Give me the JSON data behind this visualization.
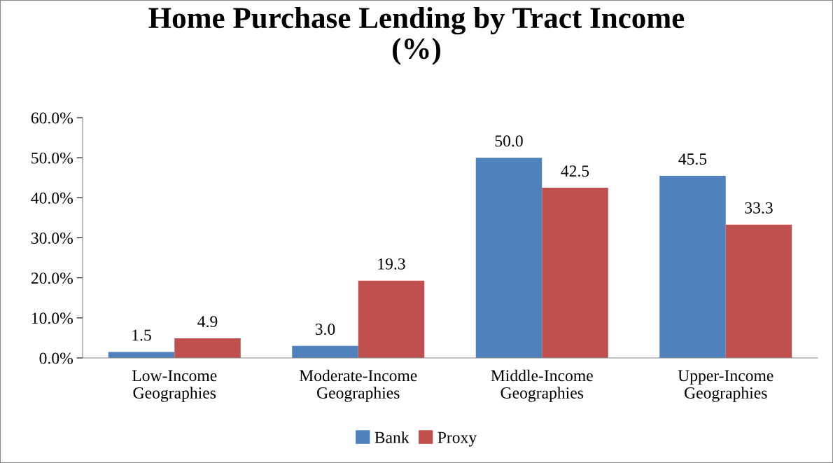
{
  "chart_data": {
    "type": "bar",
    "title": "Home Purchase Lending by Tract Income\n(%)",
    "categories": [
      "Low-Income\nGeographies",
      "Moderate-Income\nGeographies",
      "Middle-Income\nGeographies",
      "Upper-Income\nGeographies"
    ],
    "series": [
      {
        "name": "Bank",
        "color": "#4f81bd",
        "values": [
          1.5,
          3.0,
          50.0,
          45.5
        ],
        "value_labels": [
          "1.5",
          "3.0",
          "50.0",
          "45.5"
        ]
      },
      {
        "name": "Proxy",
        "color": "#c0504d",
        "values": [
          4.9,
          19.3,
          42.5,
          33.3
        ],
        "value_labels": [
          "4.9",
          "19.3",
          "42.5",
          "33.3"
        ]
      }
    ],
    "ylim": [
      0,
      60
    ],
    "yticks": [
      {
        "value": 0,
        "label": "0.0%"
      },
      {
        "value": 10,
        "label": "10.0%"
      },
      {
        "value": 20,
        "label": "20.0%"
      },
      {
        "value": 30,
        "label": "30.0%"
      },
      {
        "value": 40,
        "label": "40.0%"
      },
      {
        "value": 50,
        "label": "50.0%"
      },
      {
        "value": 60,
        "label": "60.0%"
      }
    ],
    "grid": false,
    "legend": "bottom"
  }
}
